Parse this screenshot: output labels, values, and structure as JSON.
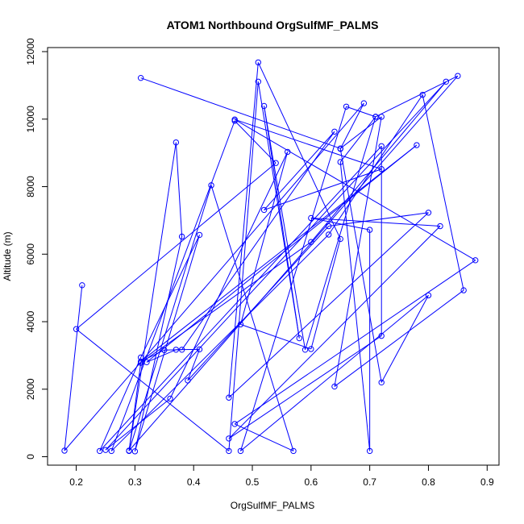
{
  "chart_data": {
    "type": "line",
    "title": "ATOM1 Northbound OrgSulfMF_PALMS",
    "xlabel": "OrgSulfMF_PALMS",
    "ylabel": "Altitude (m)",
    "xlim": [
      0.18,
      0.89
    ],
    "ylim": [
      180,
      11690
    ],
    "x_ticks": [
      0.2,
      0.3,
      0.4,
      0.5,
      0.6,
      0.7,
      0.8,
      0.9
    ],
    "x_tick_labels": [
      "0.2",
      "0.3",
      "0.4",
      "0.5",
      "0.6",
      "0.7",
      "0.8",
      "0.9"
    ],
    "y_ticks": [
      0,
      2000,
      4000,
      6000,
      8000,
      10000,
      12000
    ],
    "y_tick_labels": [
      "0",
      "2000",
      "4000",
      "6000",
      "8000",
      "10000",
      "12000"
    ],
    "style": {
      "line_color": "#0000ff",
      "marker": "open-circle"
    },
    "series": [
      {
        "points": [
          [
            0.31,
            11220
          ],
          [
            0.65,
            9130
          ],
          [
            0.72,
            10070
          ],
          [
            0.64,
            2080
          ],
          [
            0.86,
            4930
          ],
          [
            0.79,
            10720
          ],
          [
            0.63,
            6580
          ],
          [
            0.26,
            170
          ],
          [
            0.47,
            9950
          ],
          [
            0.54,
            8700
          ],
          [
            0.2,
            3780
          ],
          [
            0.46,
            170
          ],
          [
            0.51,
            11110
          ],
          [
            0.58,
            3510
          ],
          [
            0.52,
            10390
          ],
          [
            0.59,
            3170
          ],
          [
            0.71,
            10070
          ],
          [
            0.65,
            8730
          ],
          [
            0.7,
            170
          ],
          [
            0.7,
            6720
          ],
          [
            0.6,
            7070
          ],
          [
            0.82,
            6830
          ],
          [
            0.46,
            540
          ],
          [
            0.72,
            3580
          ],
          [
            0.72,
            9200
          ],
          [
            0.24,
            170
          ],
          [
            0.31,
            2940
          ],
          [
            0.41,
            6570
          ],
          [
            0.3,
            160
          ],
          [
            0.38,
            6520
          ],
          [
            0.37,
            9310
          ],
          [
            0.29,
            170
          ],
          [
            0.43,
            8040
          ],
          [
            0.57,
            170
          ],
          [
            0.47,
            970
          ],
          [
            0.88,
            5820
          ],
          [
            0.47,
            9990
          ],
          [
            0.72,
            8520
          ],
          [
            0.52,
            7310
          ],
          [
            0.64,
            9630
          ],
          [
            0.38,
            3170
          ],
          [
            0.35,
            3160
          ],
          [
            0.31,
            2820
          ],
          [
            0.78,
            9230
          ],
          [
            0.32,
            2800
          ],
          [
            0.37,
            3170
          ],
          [
            0.41,
            3180
          ],
          [
            0.39,
            2260
          ],
          [
            0.63,
            6830
          ],
          [
            0.8,
            7230
          ],
          [
            0.46,
            1750
          ],
          [
            0.51,
            11680
          ],
          [
            0.65,
            6450
          ],
          [
            0.6,
            3190
          ],
          [
            0.48,
            3920
          ],
          [
            0.56,
            9030
          ],
          [
            0.36,
            1720
          ],
          [
            0.25,
            200
          ],
          [
            0.83,
            11110
          ],
          [
            0.6,
            6360
          ],
          [
            0.31,
            2780
          ],
          [
            0.29,
            180
          ],
          [
            0.85,
            11280
          ],
          [
            0.71,
            10070
          ],
          [
            0.66,
            10370
          ],
          [
            0.48,
            170
          ],
          [
            0.8,
            4780
          ],
          [
            0.72,
            2200
          ],
          [
            0.65,
            9120
          ],
          [
            0.69,
            10470
          ],
          [
            0.18,
            180
          ],
          [
            0.21,
            5080
          ]
        ]
      }
    ]
  }
}
